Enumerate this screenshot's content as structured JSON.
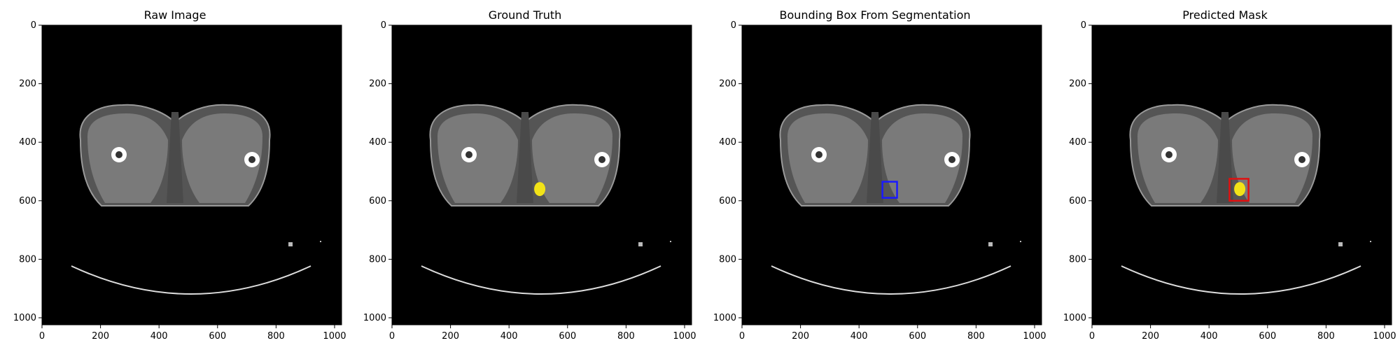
{
  "panels": [
    {
      "title": "Raw Image",
      "overlay": "none"
    },
    {
      "title": "Ground Truth",
      "overlay": "mask"
    },
    {
      "title": "Bounding Box From Segmentation",
      "overlay": "bbox"
    },
    {
      "title": "Predicted Mask",
      "overlay": "mask_bbox"
    }
  ],
  "axes": {
    "x_ticks": [
      "0",
      "200",
      "400",
      "600",
      "800",
      "1000"
    ],
    "y_ticks": [
      "0",
      "200",
      "400",
      "600",
      "800",
      "1000"
    ],
    "x_range": [
      0,
      1024
    ],
    "y_range": [
      1024,
      0
    ]
  },
  "colors": {
    "mask": "#f2e318",
    "ground_truth_box": "#1a1aff",
    "predicted_box": "#e01010"
  }
}
